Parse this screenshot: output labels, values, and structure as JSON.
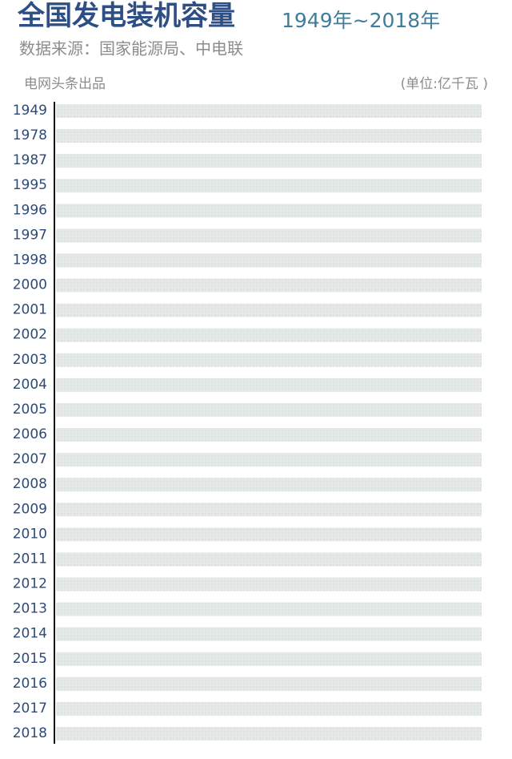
{
  "chart_data": {
    "type": "bar",
    "title": "全国发电装机容量",
    "subtitle": "1949年~2018年",
    "source": "数据来源：国家能源局、中电联",
    "credit": "电网头条出品",
    "unit": "(单位:亿千瓦 )",
    "categories": [
      "1949",
      "1978",
      "1987",
      "1995",
      "1996",
      "1997",
      "1998",
      "2000",
      "2001",
      "2002",
      "2003",
      "2004",
      "2005",
      "2006",
      "2007",
      "2008",
      "2009",
      "2010",
      "2011",
      "2012",
      "2013",
      "2014",
      "2015",
      "2016",
      "2017",
      "2018"
    ]
  }
}
